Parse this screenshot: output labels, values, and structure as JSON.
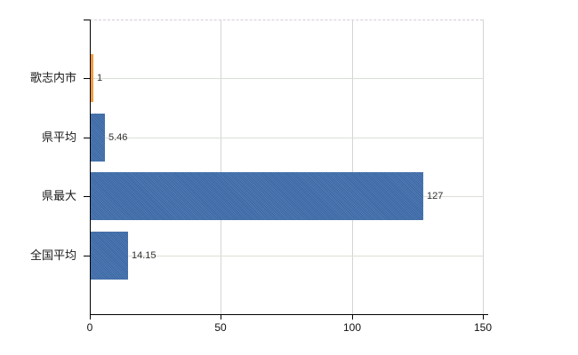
{
  "chart_data": {
    "type": "bar",
    "orientation": "horizontal",
    "title": "",
    "xlabel": "",
    "ylabel": "",
    "categories": [
      "歌志内市",
      "県平均",
      "県最大",
      "全国平均"
    ],
    "values": [
      1,
      5.46,
      127,
      14.15
    ],
    "value_labels": [
      "1",
      "5.46",
      "127",
      "14.15"
    ],
    "bar_colors": [
      "#f8993b",
      "#3d6cab",
      "#3d6cab",
      "#3d6cab"
    ],
    "xlim": [
      0,
      150
    ],
    "x_ticks": [
      0,
      50,
      100,
      150
    ],
    "x_tick_labels": [
      "0",
      "50",
      "100",
      "150"
    ],
    "grid": true,
    "legend": false,
    "colors": {
      "bar_blue": "#3d6cab",
      "bar_orange": "#f8993b",
      "axis": "#000000",
      "gridline_vertical": "#d5d5d5",
      "gridline_horizontal": "#dadfd5",
      "top_border_dashed": "#d8cbd8",
      "value_label": "#303030",
      "category_label": "#1a1a1a",
      "background": "#ffffff"
    }
  }
}
